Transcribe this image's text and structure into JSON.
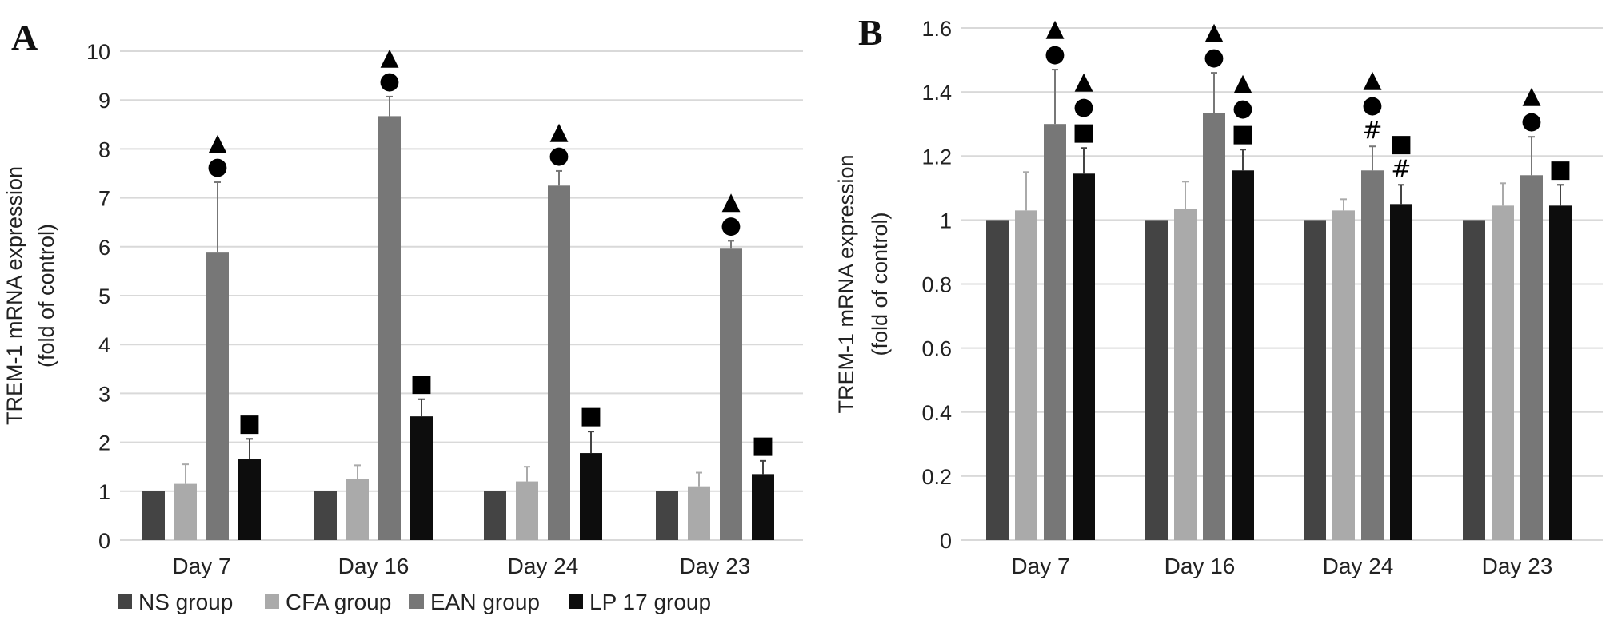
{
  "chart_data": [
    {
      "type": "bar",
      "panel_label": "A",
      "ylabel_line1": "TREM-1 mRNA expression",
      "ylabel_line2": "(fold of control)",
      "xlabel": "",
      "ylim": [
        0,
        10
      ],
      "yticks": [
        "0",
        "1",
        "2",
        "3",
        "4",
        "5",
        "6",
        "7",
        "8",
        "9",
        "10"
      ],
      "grid": true,
      "categories": [
        "Day 7",
        "Day 16",
        "Day 24",
        "Day 23"
      ],
      "series": [
        {
          "name": "NS group",
          "color": "#444444",
          "values": [
            1,
            1,
            1,
            1
          ],
          "error_upper": [
            1,
            1,
            1,
            1
          ]
        },
        {
          "name": "CFA group",
          "color": "#aaaaaa",
          "values": [
            1.15,
            1.25,
            1.2,
            1.1
          ],
          "error_upper": [
            1.55,
            1.53,
            1.5,
            1.38
          ]
        },
        {
          "name": "EAN group",
          "color": "#777777",
          "values": [
            5.88,
            8.67,
            7.25,
            5.96
          ],
          "error_upper": [
            7.32,
            9.07,
            7.55,
            6.12
          ]
        },
        {
          "name": "LP 17 group",
          "color": "#0d0d0d",
          "values": [
            1.65,
            2.53,
            1.78,
            1.35
          ],
          "error_upper": [
            2.07,
            2.88,
            2.22,
            1.62
          ]
        }
      ],
      "annotations": [
        [
          [],
          [],
          [
            "▲",
            "●"
          ],
          [
            "■"
          ]
        ],
        [
          [],
          [],
          [
            "▲",
            "●"
          ],
          [
            "■"
          ]
        ],
        [
          [],
          [],
          [
            "▲",
            "●"
          ],
          [
            "■"
          ]
        ],
        [
          [],
          [],
          [
            "▲",
            "●"
          ],
          [
            "■"
          ]
        ]
      ],
      "legend": {
        "placement": "bottom",
        "entries": [
          "NS group",
          "CFA group",
          "EAN group",
          "LP 17 group"
        ]
      }
    },
    {
      "type": "bar",
      "panel_label": "B",
      "ylabel_line1": "TREM-1 mRNA expression",
      "ylabel_line2": "(fold of control)",
      "xlabel": "",
      "ylim": [
        0,
        1.6
      ],
      "yticks": [
        "0",
        "0.2",
        "0.4",
        "0.6",
        "0.8",
        "1",
        "1.2",
        "1.4",
        "1.6"
      ],
      "grid": true,
      "categories": [
        "Day 7",
        "Day 16",
        "Day 24",
        "Day 23"
      ],
      "series": [
        {
          "name": "NS group",
          "color": "#444444",
          "values": [
            1,
            1,
            1,
            1
          ],
          "error_upper": [
            1,
            1,
            1,
            1
          ]
        },
        {
          "name": "CFA group",
          "color": "#aaaaaa",
          "values": [
            1.03,
            1.035,
            1.03,
            1.045
          ],
          "error_upper": [
            1.15,
            1.12,
            1.065,
            1.115
          ]
        },
        {
          "name": "EAN group",
          "color": "#777777",
          "values": [
            1.3,
            1.335,
            1.155,
            1.14
          ],
          "error_upper": [
            1.47,
            1.46,
            1.23,
            1.26
          ]
        },
        {
          "name": "LP 17 group",
          "color": "#0d0d0d",
          "values": [
            1.145,
            1.155,
            1.05,
            1.045
          ],
          "error_upper": [
            1.225,
            1.22,
            1.11,
            1.11
          ]
        }
      ],
      "annotations": [
        [
          [],
          [],
          [
            "▲",
            "●"
          ],
          [
            "▲",
            "●",
            "■"
          ]
        ],
        [
          [],
          [],
          [
            "▲",
            "●"
          ],
          [
            "▲",
            "●",
            "■"
          ]
        ],
        [
          [],
          [],
          [
            "▲",
            "●",
            "#"
          ],
          [
            "■",
            "#"
          ]
        ],
        [
          [],
          [],
          [
            "▲",
            "●"
          ],
          [
            "■"
          ]
        ]
      ]
    }
  ]
}
